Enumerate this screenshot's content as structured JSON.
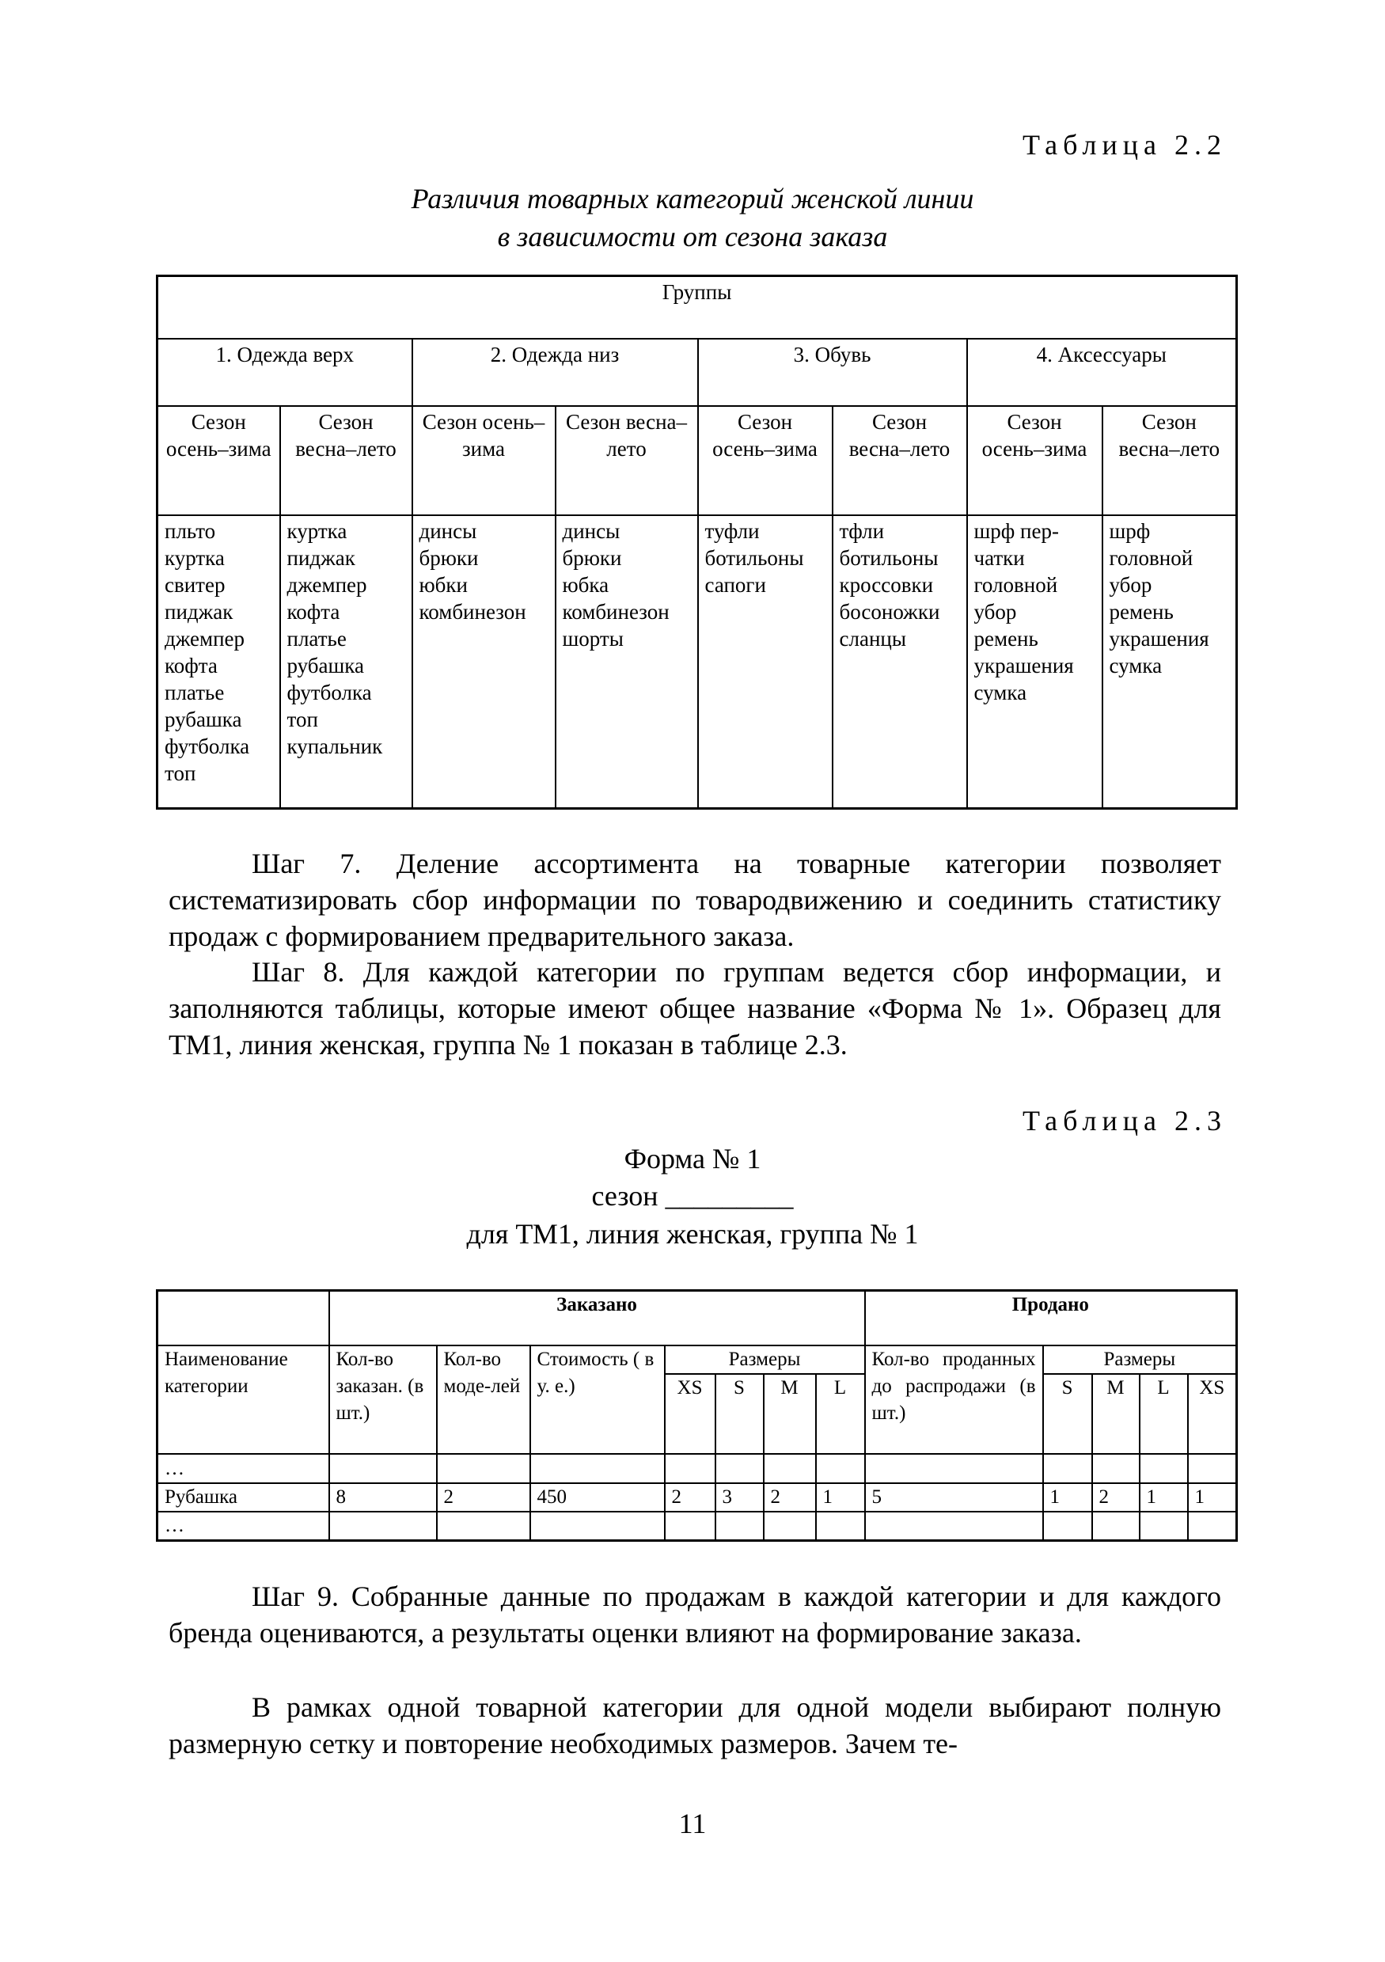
{
  "table22": {
    "label": "Таблица 2.2",
    "title_line1": "Различия товарных категорий женской линии",
    "title_line2": "в зависимости от сезона заказа",
    "header": "Группы",
    "groups": [
      "1. Одежда верх",
      "2. Одежда низ",
      "3. Обувь",
      "4. Аксессуары"
    ],
    "seasons": [
      "Сезон осень–зима",
      "Сезон весна–лето",
      "Сезон осень–зима",
      "Сезон весна–лето",
      "Сезон осень–зима",
      "Сезон весна–лето",
      "Сезон осень–зима",
      "Сезон весна–лето"
    ],
    "columns": [
      [
        "пльто",
        "куртка",
        "свитер",
        "пиджак",
        "джемпер",
        "кофта",
        "платье",
        "рубашка",
        "футболка",
        "топ"
      ],
      [
        "куртка",
        "пиджак",
        "джемпер",
        "кофта",
        "платье",
        "рубашка",
        "футболка",
        "топ",
        "купальник"
      ],
      [
        "динсы",
        "брюки",
        "юбки",
        "комбинезон"
      ],
      [
        "динсы",
        "брюки",
        "юбка",
        "комбинезон",
        "шорты"
      ],
      [
        "туфли",
        "ботильоны",
        "сапоги"
      ],
      [
        "тфли",
        "ботильоны",
        "кроссовки",
        "босоножки",
        "сланцы"
      ],
      [
        "шрф пер-",
        "чатки",
        "головной",
        "убор",
        "ремень",
        "украшения",
        "сумка"
      ],
      [
        "шрф",
        "головной",
        "убор",
        "ремень",
        "украшения",
        "сумка"
      ]
    ]
  },
  "step7": "Шаг 7. Деление ассортимента на товарные категории позволяет систематизировать сбор информации по товародвижению и соединить статистику продаж с формированием предварительного заказа.",
  "step8": "Шаг 8. Для каждой категории по группам ведется сбор информации, и заполняются таблицы, которые имеют общее название «Форма № 1». Образец для ТМ1, линия женская, группа № 1 показан в таблице 2.3.",
  "table23": {
    "label": "Таблица 2.3",
    "form_title": "Форма № 1",
    "season_line": "сезон _________",
    "subtitle": "для ТМ1, линия женская, группа № 1",
    "ordered": "Заказано",
    "sold": "Продано",
    "col_name": "Наименование категории",
    "col_qty_ordered": "Кол-во заказан. (в шт.)",
    "col_models": "Кол-во моде-лей",
    "col_cost": "Стоимость ( в у. е.)",
    "col_sizes": "Размеры",
    "col_qty_sold": "Кол-во проданных до распродажи (в шт.)",
    "sizes": [
      "XS",
      "S",
      "M",
      "L"
    ],
    "rows": [
      [
        "…",
        "",
        "",
        "",
        "",
        "",
        "",
        "",
        "",
        "",
        "",
        "",
        ""
      ],
      [
        "Рубашка",
        "8",
        "2",
        "450",
        "2",
        "3",
        "2",
        "1",
        "5",
        "1",
        "2",
        "1",
        "1"
      ],
      [
        "…",
        "",
        "",
        "",
        "",
        "",
        "",
        "",
        "",
        "",
        "",
        "",
        ""
      ]
    ]
  },
  "step9": "Шаг 9. Собранные данные по продажам в каждой категории и для каждого бренда оцениваются, а результаты оценки влияют на формирование заказа.",
  "para_last": "В рамках одной товарной категории для одной модели выбирают полную размерную сетку и повторение необходимых размеров. Зачем те-",
  "page_number": "11"
}
